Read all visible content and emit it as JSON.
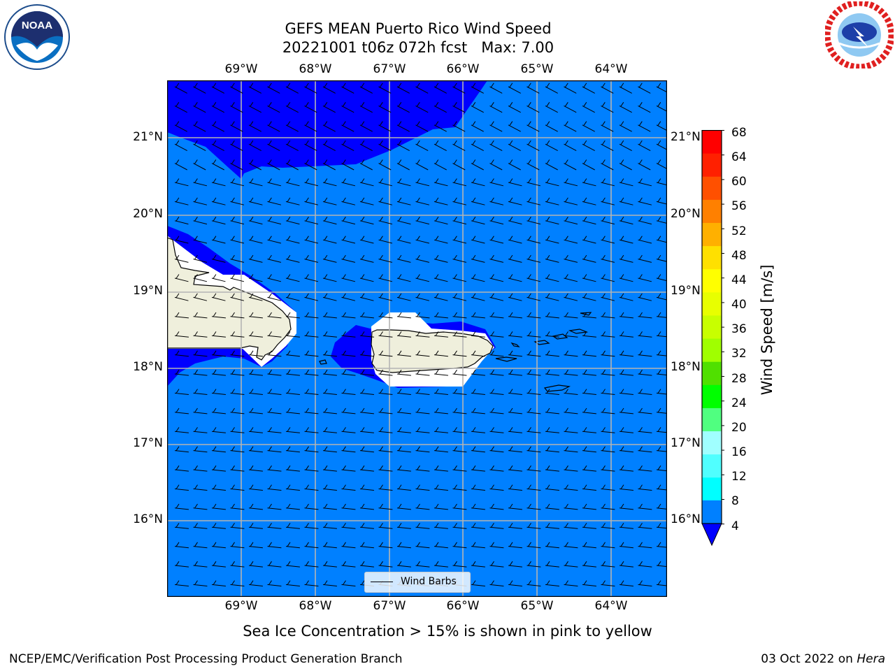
{
  "header": {
    "title_line1": "GEFS MEAN Puerto Rico Wind Speed",
    "title_line2": "20221001 t06z 072h fcst   Max: 7.00"
  },
  "map": {
    "lon_labels": [
      "69°W",
      "68°W",
      "67°W",
      "66°W",
      "65°W",
      "64°W"
    ],
    "lat_labels": [
      "21°N",
      "20°N",
      "19°N",
      "18°N",
      "17°N",
      "16°N"
    ],
    "lon_range": [
      -70.0,
      -63.25
    ],
    "lat_range": [
      15.0,
      21.75
    ],
    "gridlines": true,
    "colors": {
      "ocean_4_8": "#0080ff",
      "ocean_below_4": "#0000ff",
      "land": "#efefdc",
      "missing": "#ffffff"
    }
  },
  "legend": {
    "label": "Wind Barbs"
  },
  "colorbar": {
    "label": "Wind Speed [m/s]",
    "ticks": [
      "68",
      "64",
      "60",
      "56",
      "52",
      "48",
      "44",
      "40",
      "36",
      "32",
      "28",
      "24",
      "20",
      "16",
      "12",
      "8",
      "4"
    ],
    "colors": [
      "#0080ff",
      "#00e0ff",
      "#00ffff",
      "#50ffff",
      "#a0ffff",
      "#50ff80",
      "#00ff00",
      "#50e000",
      "#a0ff00",
      "#c8ff00",
      "#e8ff00",
      "#ffff00",
      "#ffe000",
      "#ffb000",
      "#ff8000",
      "#ff5000",
      "#ff2000",
      "#ff0000"
    ],
    "under_color": "#0000ff"
  },
  "notes": {
    "sea_ice": "Sea Ice Concentration > 15% is shown in pink to yellow"
  },
  "footer": {
    "left": "NCEP/EMC/Verification Post Processing Product Generation Branch",
    "date": "03 Oct 2022 on ",
    "machine": "Hera"
  }
}
